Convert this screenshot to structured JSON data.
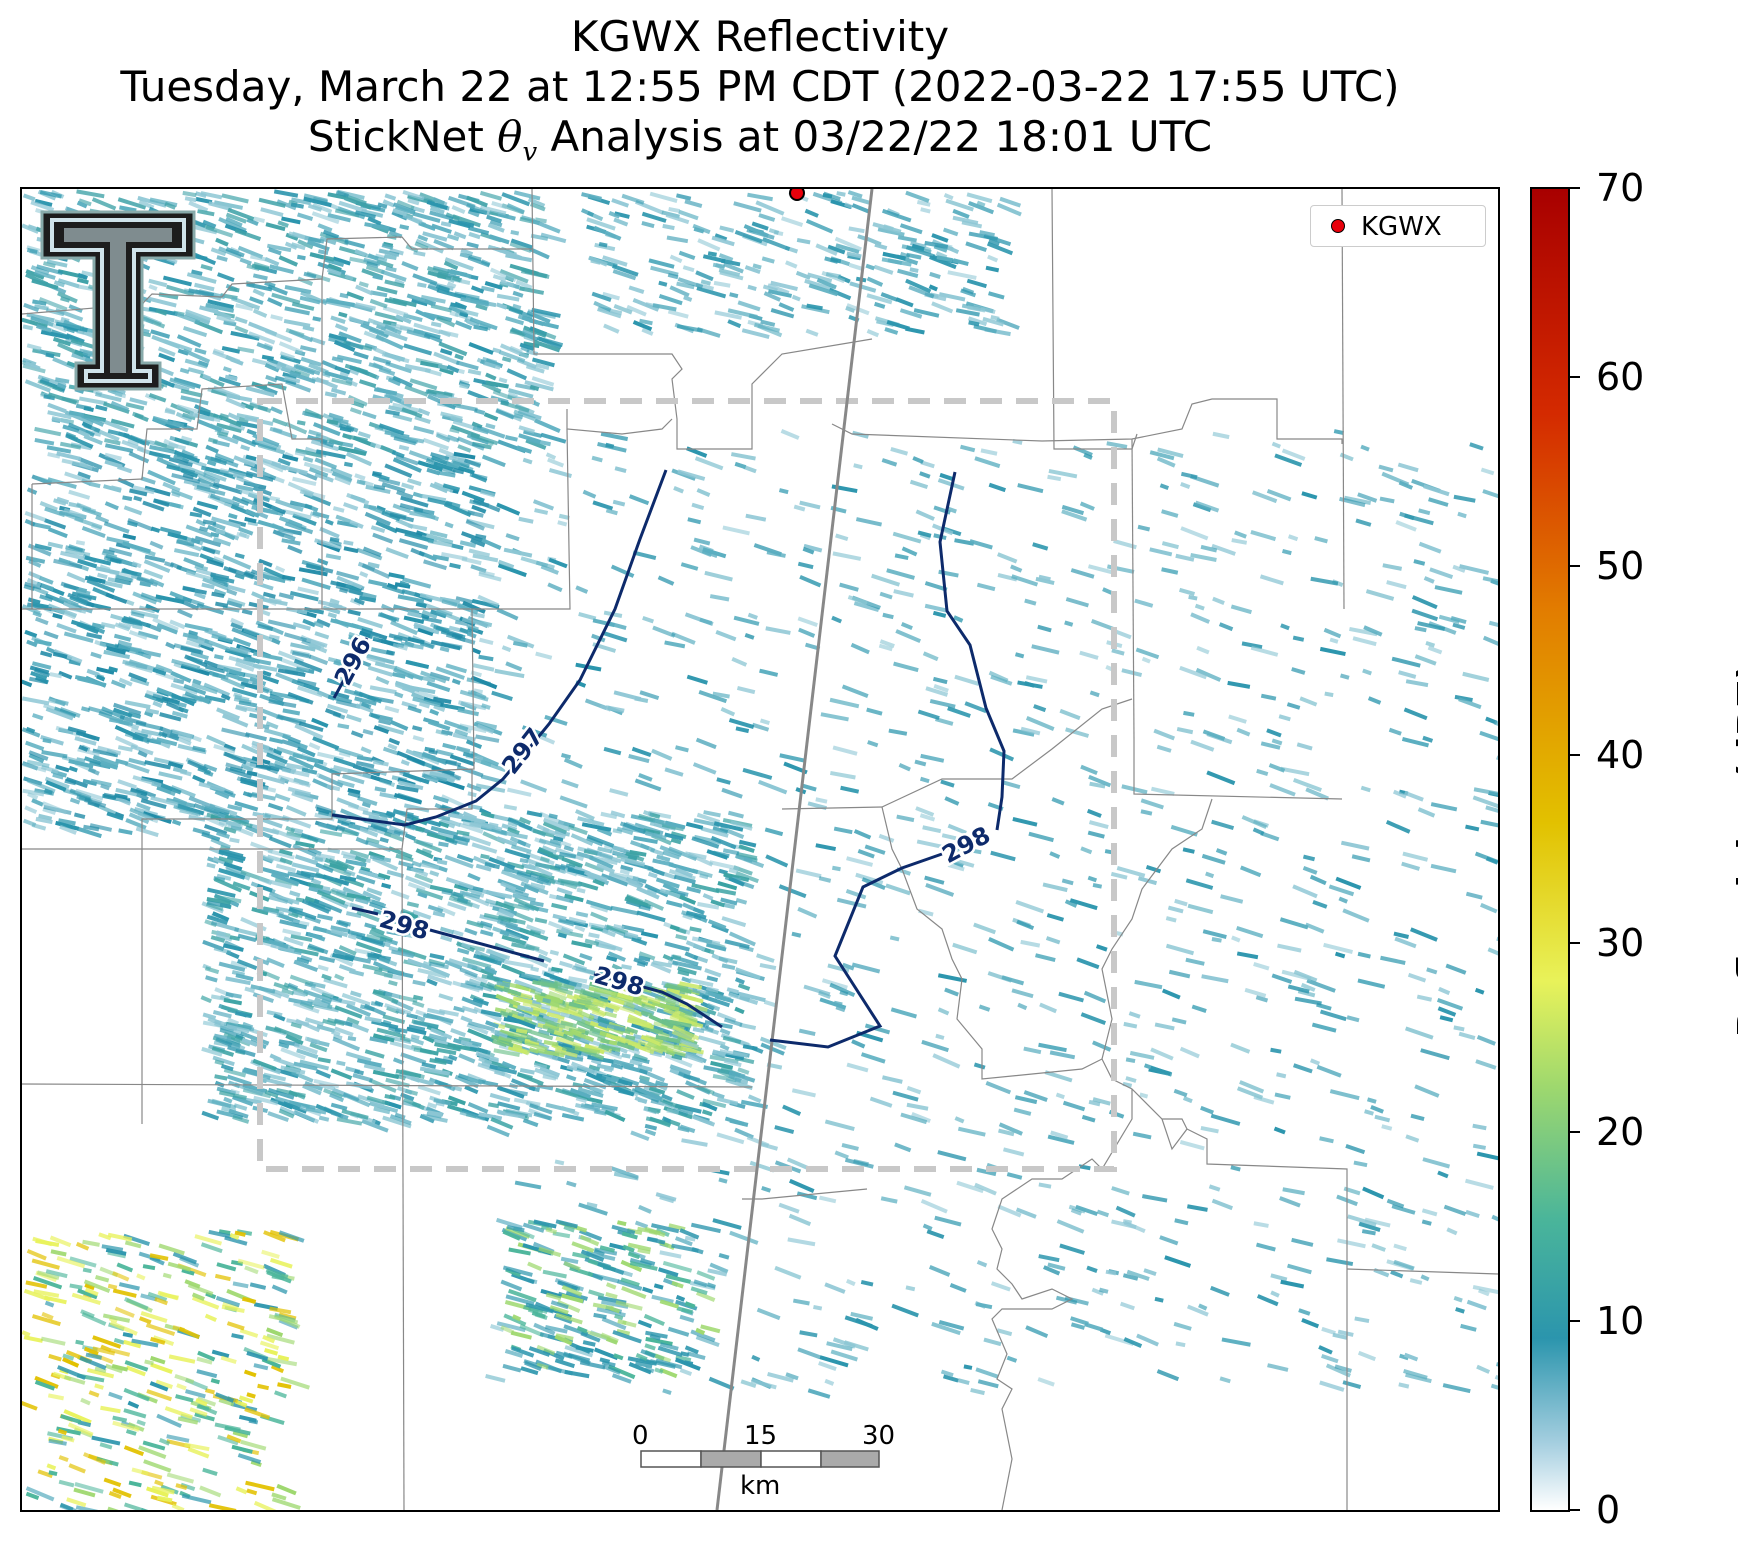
{
  "title": {
    "line1": "KGWX Reflectivity",
    "line2": "Tuesday, March 22 at 12:55 PM CDT (2022-03-22 17:55 UTC)",
    "line3_prefix": "StickNet ",
    "line3_theta": "θ",
    "line3_sub": "v",
    "line3_suffix": " Analysis at 03/22/22 18:01 UTC"
  },
  "legend": {
    "radar_site": "KGWX"
  },
  "colorbar": {
    "label": "Reflectivity (dBZ)",
    "ticks": [
      "70",
      "60",
      "50",
      "40",
      "30",
      "20",
      "10",
      "0"
    ],
    "range": [
      0,
      70
    ]
  },
  "contours": {
    "labels": [
      "296",
      "297",
      "298",
      "298",
      "298"
    ]
  },
  "scalebar": {
    "ticks": [
      "0",
      "15",
      "30"
    ],
    "unit": "km"
  },
  "colors": {
    "contour": "#0d2a6b",
    "analysis_box": "#c8c8c8",
    "radar_site": "#e8000b",
    "echo_teal": "#2b95ad"
  }
}
